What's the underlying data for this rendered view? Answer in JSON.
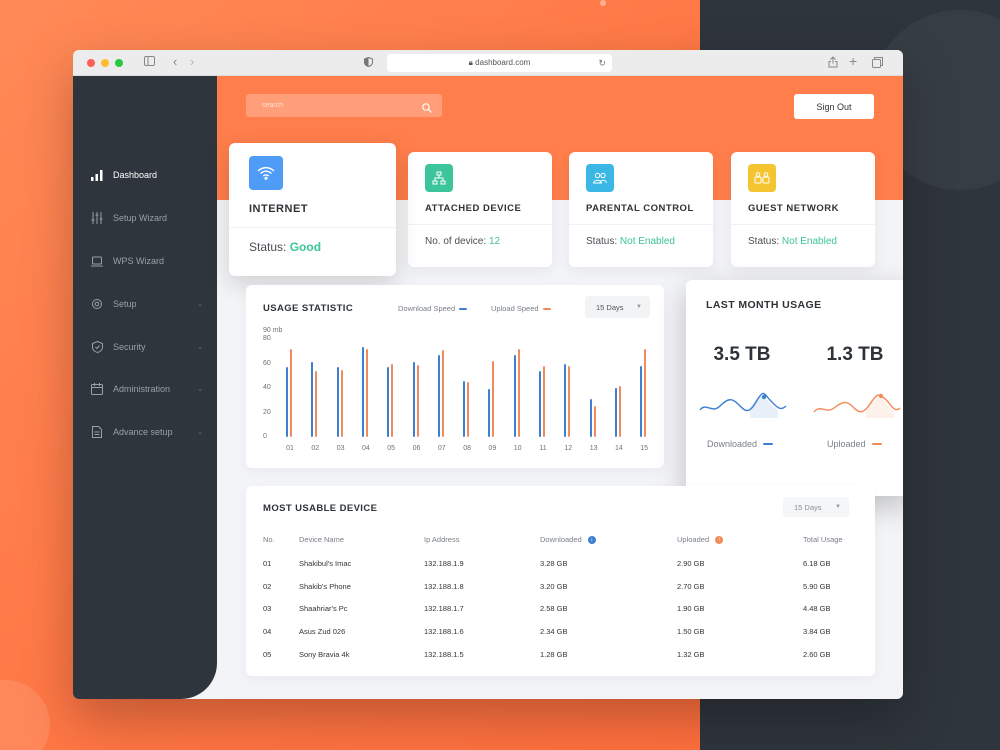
{
  "browser": {
    "url": "dashboard.com"
  },
  "search": {
    "placeholder": "search"
  },
  "header": {
    "sign_out_label": "Sign Out"
  },
  "sidebar": {
    "items": [
      {
        "label": "Dashboard",
        "icon": "bar-chart-icon",
        "active": true
      },
      {
        "label": "Setup Wizard",
        "icon": "sliders-icon"
      },
      {
        "label": "WPS Wizard",
        "icon": "laptop-icon"
      },
      {
        "label": "Setup",
        "icon": "gear-icon",
        "has_chevron": true
      },
      {
        "label": "Security",
        "icon": "shield-icon",
        "has_chevron": true
      },
      {
        "label": "Administration",
        "icon": "calendar-icon",
        "has_chevron": true
      },
      {
        "label": "Advance setup",
        "icon": "document-icon",
        "has_chevron": true
      }
    ]
  },
  "cards": {
    "internet": {
      "title": "INTERNET",
      "status_label": "Status:",
      "status_value": "Good",
      "icon": "wifi-icon",
      "color": "#4e9cf5"
    },
    "attached": {
      "title": "ATTACHED DEVICE",
      "status_label": "No. of device:",
      "status_value": "12",
      "icon": "network-icon",
      "color": "#3cc49a"
    },
    "parental": {
      "title": "PARENTAL CONTROL",
      "status_label": "Status:",
      "status_value": "Not Enabled",
      "icon": "users-icon",
      "color": "#3bb7e6"
    },
    "guest": {
      "title": "GUEST NETWORK",
      "status_label": "Status:",
      "status_value": "Not Enabled",
      "icon": "group-icon",
      "color": "#f5c431"
    }
  },
  "usage_statistic": {
    "title": "USAGE STATISTIC",
    "legend_download": "Download Speed",
    "legend_upload": "Upload Speed",
    "range": "15 Days",
    "colors": {
      "download": "#3d7fd1",
      "upload": "#f28b5b"
    }
  },
  "chart_data": {
    "type": "bar",
    "categories": [
      "01",
      "02",
      "03",
      "04",
      "05",
      "06",
      "07",
      "08",
      "09",
      "10",
      "11",
      "12",
      "13",
      "14",
      "15"
    ],
    "series": [
      {
        "name": "Download Speed",
        "values": [
          57,
          61,
          57,
          74,
          57,
          61,
          67,
          46,
          39,
          67,
          54,
          60,
          31,
          40,
          58
        ]
      },
      {
        "name": "Upload Speed",
        "values": [
          72,
          54,
          55,
          72,
          60,
          59,
          71,
          45,
          62,
          72,
          58,
          58,
          25,
          42,
          72
        ]
      }
    ],
    "ylabel": "90 mb",
    "yticks": [
      0,
      20,
      40,
      60,
      80
    ],
    "ylim": [
      0,
      90
    ],
    "grid": false
  },
  "last_month": {
    "title": "LAST MONTH USAGE",
    "downloaded_value": "3.5 TB",
    "uploaded_value": "1.3 TB",
    "downloaded_label": "Downloaded",
    "uploaded_label": "Uploaded"
  },
  "devices": {
    "title": "MOST USABLE DEVICE",
    "range": "15 Days",
    "columns": [
      "No.",
      "Device Name",
      "Ip Address",
      "Downloaded",
      "Uploaded",
      "Total Usage"
    ],
    "rows": [
      [
        "01",
        "Shakibul's Imac",
        "132.188.1.9",
        "3.28 GB",
        "2.90 GB",
        "6.18 GB"
      ],
      [
        "02",
        "Shakib's Phone",
        "132.188.1.8",
        "3.20 GB",
        "2.70 GB",
        "5.90 GB"
      ],
      [
        "03",
        "Shaahriar's Pc",
        "132.188.1.7",
        "2.58 GB",
        "1.90 GB",
        "4.48 GB"
      ],
      [
        "04",
        "Asus Zud 026",
        "132.188.1.6",
        "2.34 GB",
        "1.50 GB",
        "3.84 GB"
      ],
      [
        "05",
        "Sony Bravia 4k",
        "132.188.1.5",
        "1.28 GB",
        "1.32 GB",
        "2.60 GB"
      ]
    ]
  }
}
